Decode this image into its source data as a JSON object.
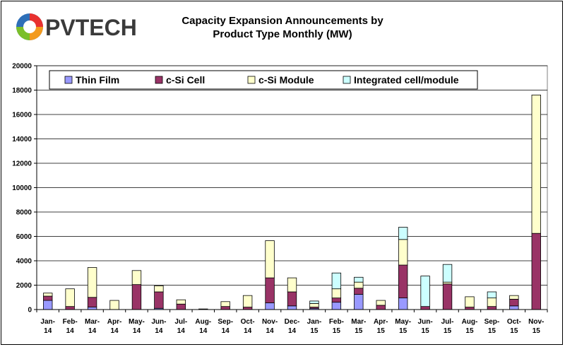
{
  "logo": {
    "text": "PVTECH"
  },
  "chart_data": {
    "type": "bar",
    "stacked": true,
    "title": "Capacity Expansion Announcements by Product Type Monthly (MW)",
    "title_lines": [
      "Capacity Expansion Announcements by",
      "Product Type Monthly (MW)"
    ],
    "legend_position": "top-left",
    "grid": "horizontal",
    "ylim": [
      0,
      20000
    ],
    "yticks": [
      0,
      2000,
      4000,
      6000,
      8000,
      10000,
      12000,
      14000,
      16000,
      18000,
      20000
    ],
    "categories": [
      [
        "Jan-",
        "14"
      ],
      [
        "Feb-",
        "14"
      ],
      [
        "Mar-",
        "14"
      ],
      [
        "Apr-",
        "14"
      ],
      [
        "May-",
        "14"
      ],
      [
        "Jun-",
        "14"
      ],
      [
        "Jul-",
        "14"
      ],
      [
        "Aug-",
        "14"
      ],
      [
        "Sep-",
        "14"
      ],
      [
        "Oct-",
        "14"
      ],
      [
        "Nov-",
        "14"
      ],
      [
        "Dec-",
        "14"
      ],
      [
        "Jan-",
        "15"
      ],
      [
        "Feb-",
        "15"
      ],
      [
        "Mar-",
        "15"
      ],
      [
        "Apr-",
        "15"
      ],
      [
        "May-",
        "15"
      ],
      [
        "Jun-",
        "15"
      ],
      [
        "Jul-",
        "15"
      ],
      [
        "Aug-",
        "15"
      ],
      [
        "Sep-",
        "15"
      ],
      [
        "Oct-",
        "15"
      ],
      [
        "Nov-",
        "15"
      ]
    ],
    "series": [
      {
        "name": "Thin Film",
        "color": "#9999ff",
        "values": [
          750,
          0,
          200,
          0,
          0,
          100,
          0,
          0,
          0,
          0,
          550,
          300,
          100,
          600,
          1250,
          0,
          950,
          0,
          0,
          0,
          0,
          300,
          0
        ]
      },
      {
        "name": "c-Si Cell",
        "color": "#993366",
        "values": [
          350,
          250,
          800,
          0,
          2050,
          1350,
          450,
          0,
          250,
          200,
          2050,
          1150,
          100,
          350,
          500,
          350,
          2700,
          250,
          2100,
          200,
          250,
          550,
          6250
        ]
      },
      {
        "name": "c-Si Module",
        "color": "#ffffcc",
        "values": [
          250,
          1450,
          2450,
          750,
          1150,
          500,
          350,
          50,
          400,
          950,
          3050,
          1150,
          300,
          750,
          500,
          400,
          2100,
          0,
          150,
          850,
          700,
          300,
          11350
        ]
      },
      {
        "name": "Integrated cell/module",
        "color": "#ccffff",
        "values": [
          0,
          0,
          0,
          0,
          0,
          0,
          0,
          0,
          0,
          0,
          0,
          0,
          200,
          1300,
          400,
          0,
          1000,
          2500,
          1450,
          0,
          500,
          0,
          0
        ]
      }
    ]
  }
}
